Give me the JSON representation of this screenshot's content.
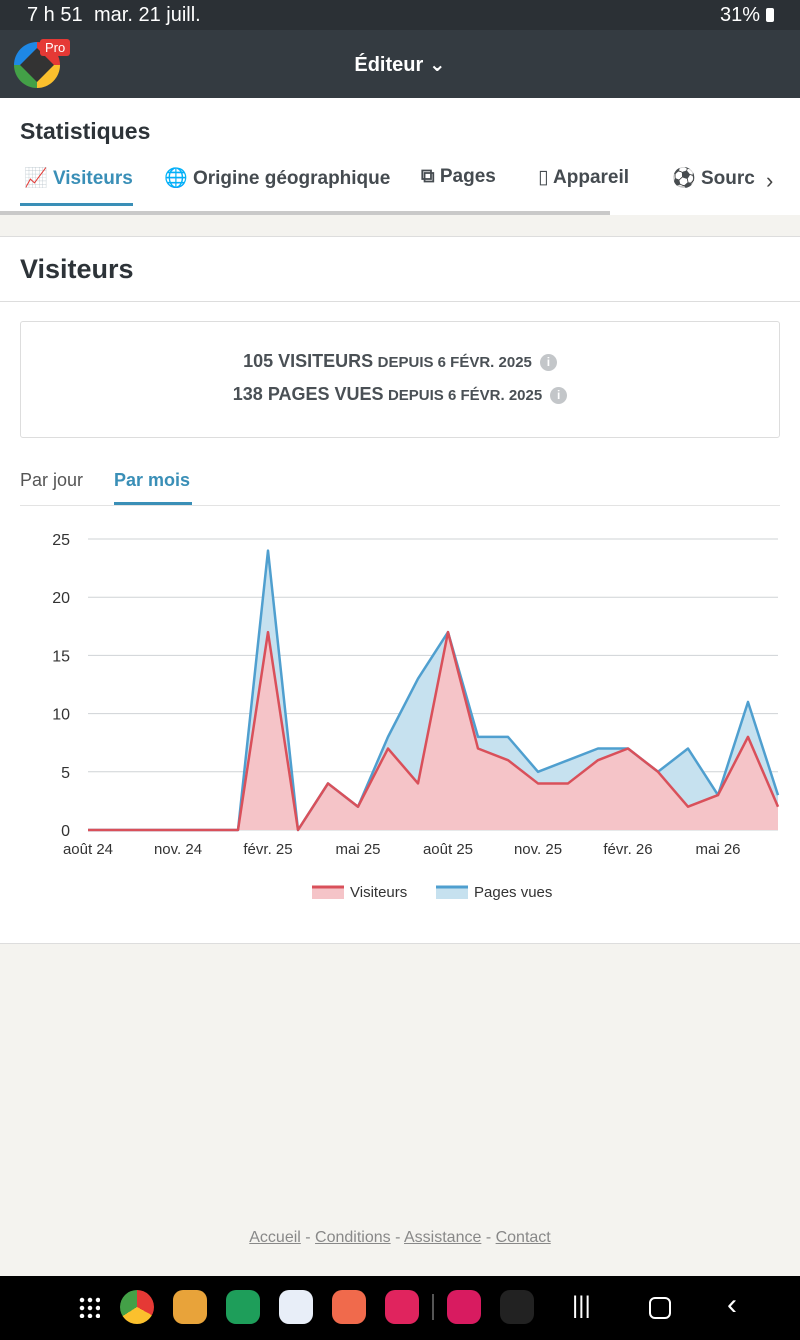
{
  "status_bar": {
    "time": "7 h 51",
    "date": "mar. 21 juill.",
    "battery": "31%"
  },
  "header": {
    "title": "Éditeur",
    "badge": "Pro"
  },
  "page_title": "Statistiques",
  "tabs": [
    "Visiteurs",
    "Origine géographique",
    "Pages",
    "Appareil",
    "Sourc"
  ],
  "section_title": "Visiteurs",
  "summary": [
    {
      "count": "105 VISITEURS",
      "since": "DEPUIS 6 FÉVR. 2025"
    },
    {
      "count": "138 PAGES VUES",
      "since": "DEPUIS 6 FÉVR. 2025"
    }
  ],
  "period_tabs": [
    "Par jour",
    "Par mois"
  ],
  "chart_data": {
    "type": "area",
    "categories": [
      "août 24",
      null,
      null,
      "nov. 24",
      null,
      null,
      "févr. 25",
      null,
      null,
      "mai 25",
      null,
      null,
      "août 25",
      null,
      null,
      "nov. 25",
      null,
      null,
      "févr. 26",
      null,
      null,
      "mai 26",
      null,
      null
    ],
    "series": [
      {
        "name": "Visiteurs",
        "color": "#d9505a",
        "area_color": "#f5c4c8",
        "values": [
          0,
          0,
          0,
          0,
          0,
          0,
          17,
          0,
          4,
          2,
          7,
          4,
          17,
          7,
          6,
          4,
          4,
          6,
          7,
          5,
          2,
          3,
          8,
          2
        ]
      },
      {
        "name": "Pages vues",
        "color": "#4f9fcf",
        "area_color": "#c6e1ef",
        "values": [
          0,
          0,
          0,
          0,
          0,
          0,
          24,
          0,
          4,
          2,
          8,
          13,
          17,
          8,
          8,
          5,
          6,
          7,
          7,
          5,
          7,
          3,
          11,
          3
        ]
      }
    ],
    "ylim": [
      0,
      25
    ],
    "yticks": [
      0,
      5,
      10,
      15,
      20,
      25
    ],
    "grid": true,
    "legend": "bottom"
  },
  "footer": [
    "Accueil",
    "Conditions",
    "Assistance",
    "Contact"
  ]
}
